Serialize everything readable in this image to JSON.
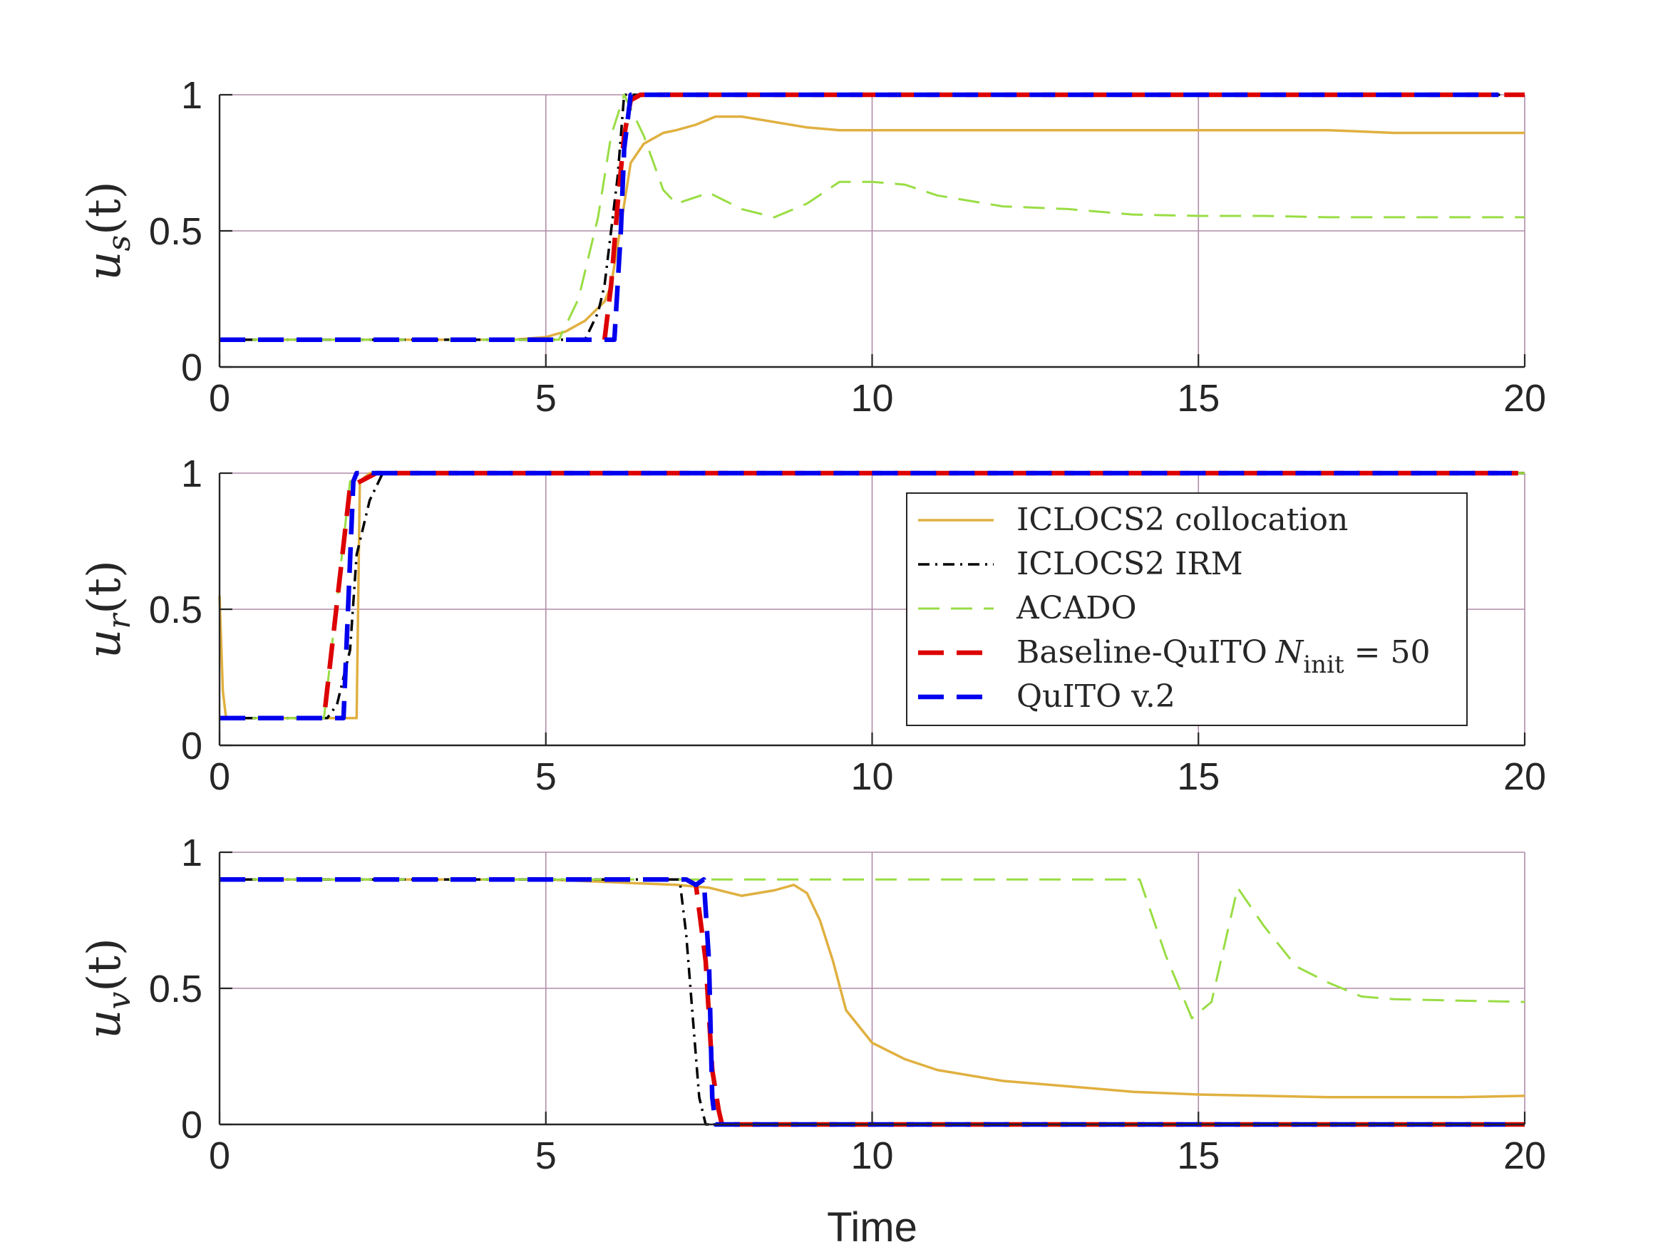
{
  "chart_data": [
    {
      "type": "line",
      "ylabel": {
        "main": "u",
        "sub": "s",
        "rest": "(t)"
      },
      "xlim": [
        0,
        20
      ],
      "ylim": [
        0,
        1
      ],
      "xticks": [
        "0",
        "5",
        "10",
        "15",
        "20"
      ],
      "yticks": [
        "0",
        "0.5",
        "1"
      ],
      "grid": true,
      "series": [
        {
          "name": "ICLOCS2 collocation",
          "key": "coll",
          "x": [
            0,
            4.5,
            5.0,
            5.3,
            5.6,
            5.9,
            6.0,
            6.15,
            6.3,
            6.5,
            6.8,
            7.0,
            7.3,
            7.6,
            8.0,
            8.5,
            9.0,
            9.5,
            10,
            11,
            12,
            13,
            14,
            15,
            16,
            17,
            18,
            19,
            20
          ],
          "y": [
            0.1,
            0.1,
            0.11,
            0.13,
            0.17,
            0.24,
            0.3,
            0.52,
            0.75,
            0.82,
            0.86,
            0.87,
            0.89,
            0.92,
            0.92,
            0.9,
            0.88,
            0.87,
            0.87,
            0.87,
            0.87,
            0.87,
            0.87,
            0.87,
            0.87,
            0.87,
            0.86,
            0.86,
            0.86
          ]
        },
        {
          "name": "ICLOCS2 IRM",
          "key": "irm",
          "x": [
            0,
            5.6,
            5.8,
            5.9,
            6.0,
            6.1,
            6.2,
            19.7,
            20
          ],
          "y": [
            0.1,
            0.1,
            0.2,
            0.3,
            0.5,
            0.7,
            1.0,
            1.0,
            1.0
          ]
        },
        {
          "name": "ACADO",
          "key": "acado",
          "x": [
            0,
            5.2,
            5.5,
            5.8,
            6.0,
            6.2,
            6.5,
            6.8,
            7.0,
            7.5,
            8.0,
            8.5,
            9.0,
            9.5,
            10,
            10.5,
            11,
            12,
            13,
            14,
            15,
            16,
            17,
            18,
            19,
            20
          ],
          "y": [
            0.1,
            0.1,
            0.25,
            0.55,
            0.85,
            1.0,
            0.85,
            0.65,
            0.6,
            0.64,
            0.58,
            0.55,
            0.6,
            0.68,
            0.68,
            0.67,
            0.63,
            0.59,
            0.58,
            0.56,
            0.555,
            0.555,
            0.55,
            0.55,
            0.55,
            0.55
          ]
        },
        {
          "name": "Baseline-QuITO N_init = 50",
          "key": "base",
          "x": [
            0,
            5.9,
            6.0,
            6.1,
            6.2,
            6.3,
            6.45,
            20
          ],
          "y": [
            0.1,
            0.1,
            0.3,
            0.6,
            0.85,
            0.98,
            1.0,
            1.0
          ]
        },
        {
          "name": "QuITO v.2",
          "key": "quito",
          "x": [
            0,
            6.05,
            6.15,
            6.2,
            6.3,
            6.4,
            19.6
          ],
          "y": [
            0.1,
            0.1,
            0.5,
            0.8,
            1.0,
            1.0,
            1.0
          ]
        }
      ]
    },
    {
      "type": "line",
      "ylabel": {
        "main": "u",
        "sub": "r",
        "rest": "(t)"
      },
      "xlim": [
        0,
        20
      ],
      "ylim": [
        0,
        1
      ],
      "xticks": [
        "0",
        "5",
        "10",
        "15",
        "20"
      ],
      "yticks": [
        "0",
        "0.5",
        "1"
      ],
      "grid": true,
      "series": [
        {
          "name": "ICLOCS2 collocation",
          "key": "coll",
          "x": [
            0,
            0.05,
            0.1,
            2.1,
            2.15,
            2.3,
            2.45,
            20
          ],
          "y": [
            0.55,
            0.2,
            0.1,
            0.1,
            0.97,
            1.0,
            1.0,
            1.0
          ]
        },
        {
          "name": "ICLOCS2 IRM",
          "key": "irm",
          "x": [
            0,
            1.65,
            1.8,
            2.0,
            2.1,
            2.3,
            2.5,
            20
          ],
          "y": [
            0.1,
            0.1,
            0.15,
            0.35,
            0.7,
            0.9,
            1.0,
            1.0
          ]
        },
        {
          "name": "ACADO",
          "key": "acado",
          "x": [
            0,
            1.6,
            2.0,
            2.4,
            20
          ],
          "y": [
            0.1,
            0.1,
            0.97,
            1.0,
            1.0
          ]
        },
        {
          "name": "Baseline-QuITO N_init = 50",
          "key": "base",
          "x": [
            0,
            1.6,
            2.0,
            2.4,
            19.9
          ],
          "y": [
            0.1,
            0.1,
            0.95,
            1.0,
            1.0
          ]
        },
        {
          "name": "QuITO v.2",
          "key": "quito",
          "x": [
            0,
            1.9,
            2.05,
            2.1,
            2.2,
            19.8
          ],
          "y": [
            0.1,
            0.1,
            0.97,
            1.0,
            1.0,
            1.0
          ]
        }
      ]
    },
    {
      "type": "line",
      "ylabel": {
        "main": "u",
        "sub": "v",
        "rest": "(t)"
      },
      "xlabel": "Time",
      "xlim": [
        0,
        20
      ],
      "ylim": [
        0,
        1
      ],
      "xticks": [
        "0",
        "5",
        "10",
        "15",
        "20"
      ],
      "yticks": [
        "0",
        "0.5",
        "1"
      ],
      "grid": true,
      "series": [
        {
          "name": "ICLOCS2 collocation",
          "key": "coll",
          "x": [
            0,
            5,
            6,
            7,
            7.5,
            8,
            8.5,
            8.8,
            9.0,
            9.2,
            9.4,
            9.6,
            10,
            10.5,
            11,
            12,
            13,
            14,
            15,
            16,
            17,
            18,
            19,
            20
          ],
          "y": [
            0.9,
            0.9,
            0.89,
            0.88,
            0.87,
            0.84,
            0.86,
            0.88,
            0.85,
            0.75,
            0.6,
            0.42,
            0.3,
            0.24,
            0.2,
            0.16,
            0.14,
            0.12,
            0.11,
            0.105,
            0.1,
            0.1,
            0.1,
            0.105
          ]
        },
        {
          "name": "ICLOCS2 IRM",
          "key": "irm",
          "x": [
            0,
            7.05,
            7.15,
            7.25,
            7.35,
            7.45,
            19.8,
            20
          ],
          "y": [
            0.9,
            0.9,
            0.7,
            0.4,
            0.1,
            0.0,
            0.0,
            0.0
          ]
        },
        {
          "name": "ACADO",
          "key": "acado",
          "x": [
            0,
            14.1,
            14.5,
            14.9,
            15.2,
            15.6,
            16.0,
            16.5,
            17.0,
            17.5,
            18,
            19,
            20
          ],
          "y": [
            0.9,
            0.9,
            0.62,
            0.39,
            0.45,
            0.87,
            0.73,
            0.58,
            0.52,
            0.47,
            0.46,
            0.455,
            0.45
          ]
        },
        {
          "name": "Baseline-QuITO N_init = 50",
          "key": "base",
          "x": [
            0,
            7.15,
            7.3,
            7.45,
            7.55,
            7.65,
            7.7,
            20
          ],
          "y": [
            0.9,
            0.9,
            0.88,
            0.6,
            0.2,
            0.05,
            0.0,
            0.0
          ]
        },
        {
          "name": "QuITO v.2",
          "key": "quito",
          "x": [
            0,
            7.15,
            7.3,
            7.42,
            7.5,
            7.55,
            7.6,
            19.7
          ],
          "y": [
            0.9,
            0.9,
            0.88,
            0.9,
            0.6,
            0.1,
            0.0,
            0.0
          ]
        }
      ]
    }
  ],
  "legend": {
    "placement": "inside-right",
    "entries": [
      {
        "key": "coll",
        "text": "ICLOCS2 collocation"
      },
      {
        "key": "irm",
        "text": "ICLOCS2 IRM"
      },
      {
        "key": "acado",
        "text": "ACADO"
      },
      {
        "key": "base",
        "text": "Baseline-QuITO",
        "math_main": "N",
        "math_sub": "init",
        "math_rest": " = 50"
      },
      {
        "key": "quito",
        "text": "QuITO v.2"
      }
    ]
  },
  "styles": {
    "coll": {
      "color": "#e0b040",
      "dash": "none"
    },
    "irm": {
      "color": "#000000",
      "dash": "dashdot"
    },
    "acado": {
      "color": "#99dd44",
      "dash": "dashed-thin"
    },
    "base": {
      "color": "#dd0000",
      "dash": "dashed-thick"
    },
    "quito": {
      "color": "#0000ee",
      "dash": "dashed-thick"
    },
    "grid_color": "#b08ca8",
    "axis_color": "#262626"
  }
}
